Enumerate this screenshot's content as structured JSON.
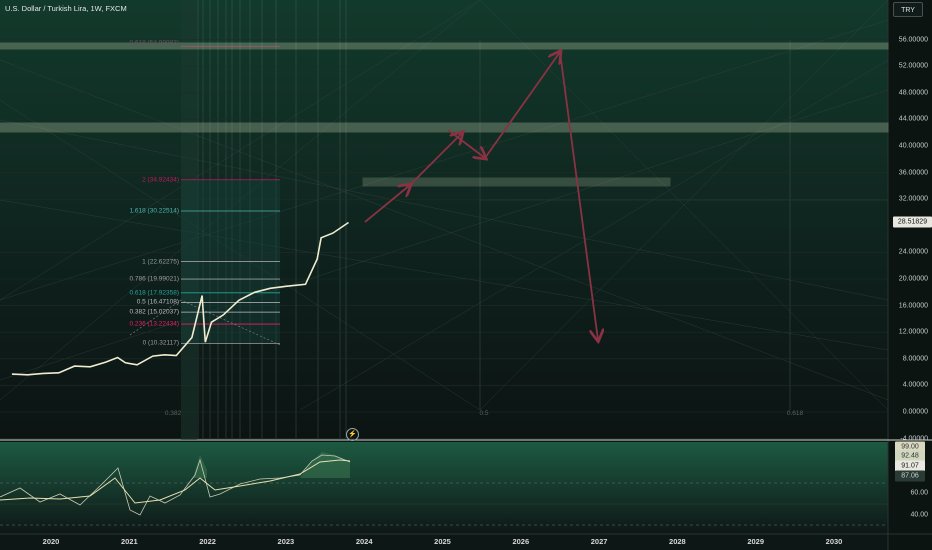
{
  "header": {
    "title": "U.S. Dollar / Turkish Lira, 1W, FXCM"
  },
  "symbol_button": "TRY",
  "price_axis": [
    {
      "label": "56.00000",
      "value": 56
    },
    {
      "label": "52.00000",
      "value": 52
    },
    {
      "label": "48.00000",
      "value": 48
    },
    {
      "label": "44.00000",
      "value": 44
    },
    {
      "label": "40.00000",
      "value": 40
    },
    {
      "label": "36.00000",
      "value": 36
    },
    {
      "label": "32.00000",
      "value": 32
    },
    {
      "label": "24.00000",
      "value": 24
    },
    {
      "label": "20.00000",
      "value": 20
    },
    {
      "label": "16.00000",
      "value": 16
    },
    {
      "label": "12.00000",
      "value": 12
    },
    {
      "label": "8.00000",
      "value": 8
    },
    {
      "label": "4.00000",
      "value": 4
    },
    {
      "label": "0.00000",
      "value": 0
    },
    {
      "label": "-4.00000",
      "value": -4
    }
  ],
  "current_price": {
    "label": "28.51829",
    "value": 28.51829
  },
  "indicator_axis": [
    {
      "label": "60.00",
      "value": 60
    },
    {
      "label": "40.00",
      "value": 40
    }
  ],
  "indicator_tags": [
    {
      "label": "99.00",
      "value": 99
    },
    {
      "label": "92.48",
      "value": 92.48
    },
    {
      "label": "91.07",
      "value": 91.07
    },
    {
      "label": "87.06",
      "value": 87.06
    }
  ],
  "time_axis": [
    "2020",
    "2021",
    "2022",
    "2023",
    "2024",
    "2025",
    "2026",
    "2027",
    "2028",
    "2029",
    "2030"
  ],
  "fib_levels": [
    {
      "label": "2 (34.92434)",
      "value": 34.92434,
      "color": "#c2185b"
    },
    {
      "label": "1.618 (30.22514)",
      "value": 30.22514,
      "color": "#4db6ac"
    },
    {
      "label": "1 (22.62275)",
      "value": 22.62275,
      "color": "#9e9e9e"
    },
    {
      "label": "0.786 (19.99021)",
      "value": 19.99021,
      "color": "#9e9e9e"
    },
    {
      "label": "0.618 (17.92358)",
      "value": 17.92358,
      "color": "#26a69a"
    },
    {
      "label": "0.5 (16.47108)",
      "value": 16.47108,
      "color": "#bdbdbd"
    },
    {
      "label": "0.382 (15.02037)",
      "value": 15.02037,
      "color": "#bdbdbd"
    },
    {
      "label": "0.236 (13.22434)",
      "value": 13.22434,
      "color": "#e91e63"
    },
    {
      "label": "0 (10.32117)",
      "value": 10.32117,
      "color": "#9e9e9e"
    }
  ],
  "top_fib_label": "0.618 (54.99983)",
  "bottom_fib_labels": [
    "0.382",
    "0.5",
    "0.618"
  ],
  "colors": {
    "background": "#0d1715",
    "price_line": "#f1ecd0",
    "arrow": "#8a3244",
    "zone": "#e8efc8",
    "accent": "#2e7d5b"
  },
  "chart_data": {
    "type": "line",
    "series": [
      {
        "values": [
          [
            2019.5,
            5.7
          ],
          [
            2019.7,
            5.6
          ],
          [
            2019.9,
            5.8
          ],
          [
            2020.1,
            5.9
          ],
          [
            2020.3,
            6.9
          ],
          [
            2020.5,
            6.8
          ],
          [
            2020.7,
            7.5
          ],
          [
            2020.85,
            8.2
          ],
          [
            2020.95,
            7.4
          ],
          [
            2021.1,
            7.1
          ],
          [
            2021.3,
            8.4
          ],
          [
            2021.45,
            8.6
          ],
          [
            2021.6,
            8.5
          ],
          [
            2021.8,
            11.2
          ],
          [
            2021.93,
            17.5
          ],
          [
            2021.97,
            10.5
          ],
          [
            2022.05,
            13.5
          ],
          [
            2022.2,
            14.6
          ],
          [
            2022.4,
            16.8
          ],
          [
            2022.6,
            18.0
          ],
          [
            2022.8,
            18.6
          ],
          [
            2023.0,
            18.9
          ],
          [
            2023.25,
            19.2
          ],
          [
            2023.4,
            23.0
          ],
          [
            2023.45,
            26.2
          ],
          [
            2023.6,
            26.9
          ],
          [
            2023.8,
            28.5
          ]
        ]
      }
    ],
    "ylim": [
      -4,
      58
    ],
    "xlim": [
      2019.5,
      2030.7
    ]
  }
}
